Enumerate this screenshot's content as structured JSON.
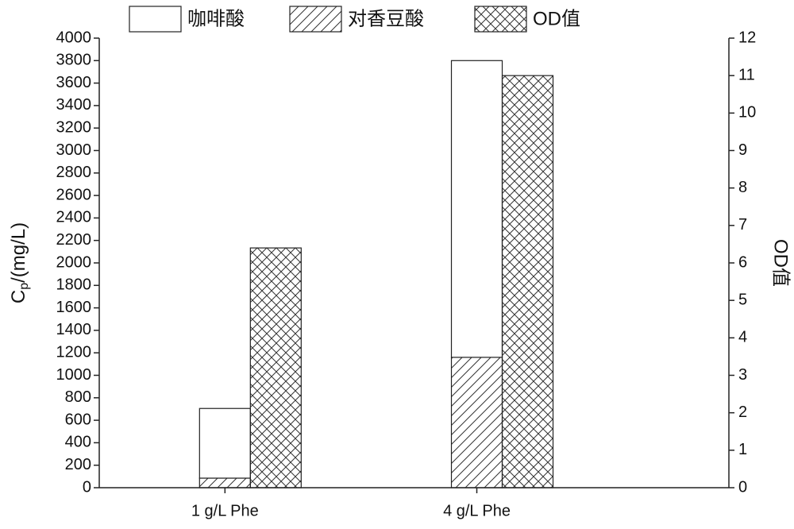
{
  "chart_data": {
    "type": "bar",
    "ylabel": {
      "main": "C",
      "sub": "p",
      "rest": "/(mg/L)"
    },
    "y2label": "OD值",
    "categories": [
      "1 g/L Phe",
      "4 g/L Phe"
    ],
    "series": [
      {
        "name": "咖啡酸",
        "color": "#ffffff",
        "hatch": "none",
        "stack": true,
        "values": [
          620,
          2640
        ]
      },
      {
        "name": "对香豆酸",
        "color": "#ffffff",
        "hatch": "diagonal",
        "stack": true,
        "values": [
          85,
          1160
        ]
      },
      {
        "name": "OD值",
        "color": "#ffffff",
        "hatch": "cross",
        "axis": "y2",
        "values": [
          6.4,
          11.0
        ]
      }
    ],
    "ylim": [
      0,
      4000
    ],
    "yticks": [
      0,
      200,
      400,
      600,
      800,
      1000,
      1200,
      1400,
      1600,
      1800,
      2000,
      2200,
      2400,
      2600,
      2800,
      3000,
      3200,
      3400,
      3600,
      3800,
      4000
    ],
    "y2lim": [
      0,
      12
    ],
    "y2ticks": [
      0,
      1,
      2,
      3,
      4,
      5,
      6,
      7,
      8,
      9,
      10,
      11,
      12
    ],
    "legend": "top"
  }
}
